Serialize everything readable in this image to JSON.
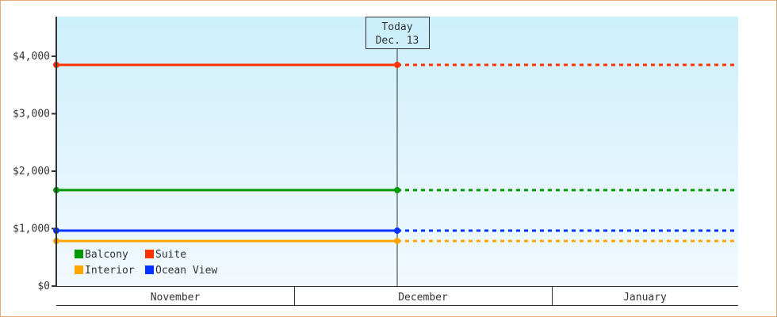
{
  "chart_data": {
    "type": "line",
    "ylim": [
      0,
      4000
    ],
    "y_ticks": [
      {
        "value": 0,
        "label": "$0"
      },
      {
        "value": 1000,
        "label": "$1,000"
      },
      {
        "value": 2000,
        "label": "$2,000"
      },
      {
        "value": 3000,
        "label": "$3,000"
      },
      {
        "value": 4000,
        "label": "$4,000"
      }
    ],
    "x_categories": [
      "November",
      "December",
      "January"
    ],
    "today_marker": {
      "line1": "Today",
      "line2": "Dec. 13"
    },
    "grid": false,
    "legend_placement": "bottom-left",
    "background_gradient": [
      "#cdeffc",
      "#f2f9fe"
    ],
    "series": [
      {
        "name": "Balcony",
        "color": "#009900",
        "value": 1670
      },
      {
        "name": "Suite",
        "color": "#ff3300",
        "value": 3850
      },
      {
        "name": "Interior",
        "color": "#ffa500",
        "value": 785
      },
      {
        "name": "Ocean View",
        "color": "#0033ff",
        "value": 965
      }
    ],
    "note_style": "solid up to today, dotted projection after"
  }
}
